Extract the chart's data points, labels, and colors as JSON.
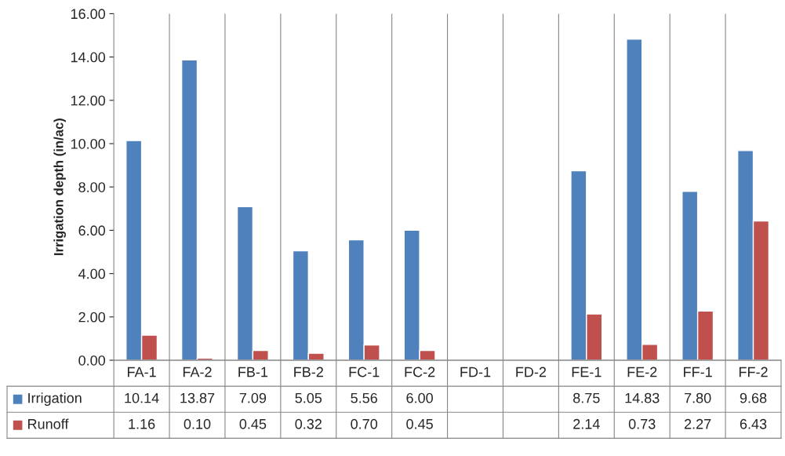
{
  "chart_data": {
    "type": "bar",
    "ylabel": "Irrigation depth (in/ac)",
    "categories": [
      "FA-1",
      "FA-2",
      "FB-1",
      "FB-2",
      "FC-1",
      "FC-2",
      "FD-1",
      "FD-2",
      "FE-1",
      "FE-2",
      "FF-1",
      "FF-2"
    ],
    "series": [
      {
        "name": "Irrigation",
        "color": "#4f81bd",
        "values": [
          10.14,
          13.87,
          7.09,
          5.05,
          5.56,
          6.0,
          null,
          null,
          8.75,
          14.83,
          7.8,
          9.68
        ],
        "value_labels": [
          "10.14",
          "13.87",
          "7.09",
          "5.05",
          "5.56",
          "6.00",
          null,
          null,
          "8.75",
          "14.83",
          "7.80",
          "9.68"
        ]
      },
      {
        "name": "Runoff",
        "color": "#c0504d",
        "values": [
          1.16,
          0.1,
          0.45,
          0.32,
          0.7,
          0.45,
          null,
          null,
          2.14,
          0.73,
          2.27,
          6.43
        ],
        "value_labels": [
          "1.16",
          "0.10",
          "0.45",
          "0.32",
          "0.70",
          "0.45",
          null,
          null,
          "2.14",
          "0.73",
          "2.27",
          "6.43"
        ]
      }
    ],
    "ylim": [
      0,
      16
    ],
    "yticks": [
      {
        "value": 0,
        "label": "0.00"
      },
      {
        "value": 2,
        "label": "2.00"
      },
      {
        "value": 4,
        "label": "4.00"
      },
      {
        "value": 6,
        "label": "6.00"
      },
      {
        "value": 8,
        "label": "8.00"
      },
      {
        "value": 10,
        "label": "10.00"
      },
      {
        "value": 12,
        "label": "12.00"
      },
      {
        "value": 14,
        "label": "14.00"
      },
      {
        "value": 16,
        "label": "16.00"
      }
    ],
    "grid": "x",
    "legend": "bottom"
  }
}
